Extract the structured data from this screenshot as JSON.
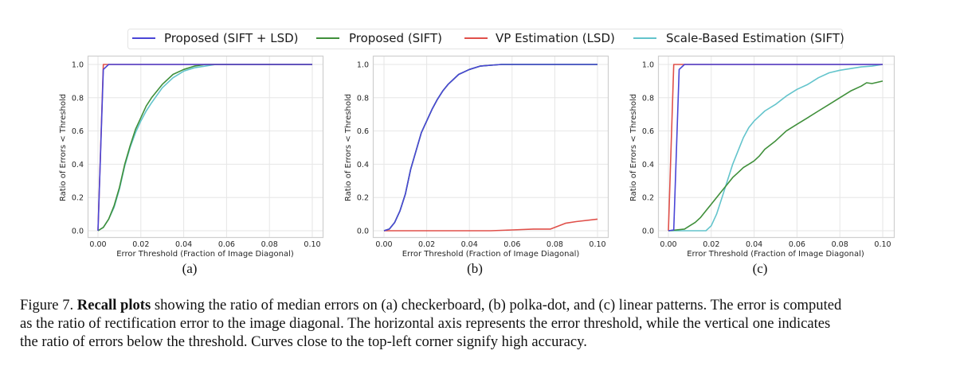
{
  "figure": {
    "number_label": "Figure 7.",
    "bold_title": "Recall plots",
    "caption_lines": [
      " showing the ratio of median errors on (a) checkerboard, (b) polka-dot, and (c) linear patterns. The error is computed",
      "as the ratio of rectification error to the image diagonal.  The horizontal axis represents the error threshold, while the vertical one indicates",
      "the ratio of errors below the threshold. Curves close to the top-left corner signify high accuracy."
    ]
  },
  "legend": [
    {
      "label": "Proposed (SIFT + LSD)",
      "color": "#4a45d6"
    },
    {
      "label": "Proposed (SIFT)",
      "color": "#3f8f3a"
    },
    {
      "label": "VP Estimation (LSD)",
      "color": "#e0504a"
    },
    {
      "label": "Scale-Based Estimation (SIFT)",
      "color": "#63c4cc"
    }
  ],
  "chart_data": [
    {
      "panel_label": "(a)",
      "type": "line",
      "title": "",
      "xlabel": "Error Threshold (Fraction of Image Diagonal)",
      "ylabel": "Ratio of Errors < Threshold",
      "xlim": [
        0.0,
        0.1
      ],
      "ylim": [
        0.0,
        1.0
      ],
      "xticks": [
        "0.00",
        "0.02",
        "0.04",
        "0.06",
        "0.08",
        "0.10"
      ],
      "yticks": [
        "0.0",
        "0.2",
        "0.4",
        "0.6",
        "0.8",
        "1.0"
      ],
      "grid": true,
      "series": [
        {
          "name": "Scale-Based Estimation (SIFT)",
          "x": [
            0.0,
            0.0025,
            0.005,
            0.0075,
            0.01,
            0.0125,
            0.015,
            0.0175,
            0.02,
            0.0225,
            0.025,
            0.03,
            0.035,
            0.04,
            0.045,
            0.05,
            0.055,
            0.06,
            0.1
          ],
          "y": [
            0.0,
            0.02,
            0.07,
            0.14,
            0.25,
            0.39,
            0.5,
            0.59,
            0.66,
            0.72,
            0.77,
            0.86,
            0.92,
            0.96,
            0.98,
            0.99,
            1.0,
            1.0,
            1.0
          ]
        },
        {
          "name": "Proposed (SIFT)",
          "x": [
            0.0,
            0.0025,
            0.005,
            0.0075,
            0.01,
            0.0125,
            0.015,
            0.0175,
            0.02,
            0.0225,
            0.025,
            0.03,
            0.035,
            0.04,
            0.045,
            0.05,
            0.055,
            0.06,
            0.1
          ],
          "y": [
            0.0,
            0.02,
            0.07,
            0.15,
            0.26,
            0.4,
            0.51,
            0.61,
            0.68,
            0.75,
            0.8,
            0.88,
            0.94,
            0.97,
            0.99,
            1.0,
            1.0,
            1.0,
            1.0
          ]
        },
        {
          "name": "VP Estimation (LSD)",
          "x": [
            0.0,
            0.0025,
            0.005,
            0.1
          ],
          "y": [
            0.0,
            1.0,
            1.0,
            1.0
          ]
        },
        {
          "name": "Proposed (SIFT + LSD)",
          "x": [
            0.0,
            0.0025,
            0.005,
            0.1
          ],
          "y": [
            0.0,
            0.97,
            1.0,
            1.0
          ]
        }
      ]
    },
    {
      "panel_label": "(b)",
      "type": "line",
      "title": "",
      "xlabel": "Error Threshold (Fraction of Image Diagonal)",
      "ylabel": "Ratio of Errors < Threshold",
      "xlim": [
        0.0,
        0.1
      ],
      "ylim": [
        0.0,
        1.0
      ],
      "xticks": [
        "0.00",
        "0.02",
        "0.04",
        "0.06",
        "0.08",
        "0.10"
      ],
      "yticks": [
        "0.0",
        "0.2",
        "0.4",
        "0.6",
        "0.8",
        "1.0"
      ],
      "grid": true,
      "series": [
        {
          "name": "Scale-Based Estimation (SIFT)",
          "x": [
            0.0,
            0.0025,
            0.005,
            0.0075,
            0.01,
            0.0125,
            0.015,
            0.0175,
            0.02,
            0.0225,
            0.025,
            0.0275,
            0.03,
            0.035,
            0.04,
            0.045,
            0.05,
            0.055,
            0.06,
            0.1
          ],
          "y": [
            0.0,
            0.01,
            0.05,
            0.12,
            0.22,
            0.37,
            0.48,
            0.59,
            0.66,
            0.73,
            0.79,
            0.84,
            0.88,
            0.94,
            0.97,
            0.99,
            0.995,
            1.0,
            1.0,
            1.0
          ]
        },
        {
          "name": "Proposed (SIFT)",
          "x": [
            0.0,
            0.0025,
            0.005,
            0.0075,
            0.01,
            0.0125,
            0.015,
            0.0175,
            0.02,
            0.0225,
            0.025,
            0.0275,
            0.03,
            0.035,
            0.04,
            0.045,
            0.05,
            0.055,
            0.06,
            0.1
          ],
          "y": [
            0.0,
            0.01,
            0.05,
            0.12,
            0.22,
            0.37,
            0.48,
            0.59,
            0.66,
            0.73,
            0.79,
            0.84,
            0.88,
            0.94,
            0.97,
            0.99,
            0.995,
            1.0,
            1.0,
            1.0
          ]
        },
        {
          "name": "VP Estimation (LSD)",
          "x": [
            0.0,
            0.05,
            0.06,
            0.07,
            0.078,
            0.085,
            0.09,
            0.1
          ],
          "y": [
            0.0,
            0.0,
            0.005,
            0.01,
            0.01,
            0.045,
            0.055,
            0.07
          ]
        },
        {
          "name": "Proposed (SIFT + LSD)",
          "x": [
            0.0,
            0.0025,
            0.005,
            0.0075,
            0.01,
            0.0125,
            0.015,
            0.0175,
            0.02,
            0.0225,
            0.025,
            0.0275,
            0.03,
            0.035,
            0.04,
            0.045,
            0.05,
            0.055,
            0.06,
            0.1
          ],
          "y": [
            0.0,
            0.01,
            0.05,
            0.12,
            0.22,
            0.37,
            0.48,
            0.59,
            0.66,
            0.73,
            0.79,
            0.84,
            0.88,
            0.94,
            0.97,
            0.99,
            0.995,
            1.0,
            1.0,
            1.0
          ]
        }
      ]
    },
    {
      "panel_label": "(c)",
      "type": "line",
      "title": "",
      "xlabel": "Error Threshold (Fraction of Image Diagonal)",
      "ylabel": "Ratio of Errors < Threshold",
      "xlim": [
        0.0,
        0.1
      ],
      "ylim": [
        0.0,
        1.0
      ],
      "xticks": [
        "0.00",
        "0.02",
        "0.04",
        "0.06",
        "0.08",
        "0.10"
      ],
      "yticks": [
        "0.0",
        "0.2",
        "0.4",
        "0.6",
        "0.8",
        "1.0"
      ],
      "grid": true,
      "series": [
        {
          "name": "Scale-Based Estimation (SIFT)",
          "x": [
            0.0,
            0.0175,
            0.02,
            0.0225,
            0.025,
            0.0275,
            0.03,
            0.0325,
            0.035,
            0.0375,
            0.04,
            0.0425,
            0.045,
            0.05,
            0.055,
            0.06,
            0.065,
            0.07,
            0.075,
            0.08,
            0.085,
            0.09,
            0.095,
            0.1
          ],
          "y": [
            0.0,
            0.0,
            0.03,
            0.1,
            0.2,
            0.3,
            0.4,
            0.48,
            0.56,
            0.62,
            0.66,
            0.69,
            0.72,
            0.76,
            0.81,
            0.85,
            0.88,
            0.92,
            0.95,
            0.965,
            0.975,
            0.985,
            0.99,
            1.0
          ]
        },
        {
          "name": "Proposed (SIFT)",
          "x": [
            0.0,
            0.0075,
            0.01,
            0.0125,
            0.015,
            0.0175,
            0.02,
            0.0225,
            0.025,
            0.0275,
            0.03,
            0.0325,
            0.035,
            0.0375,
            0.04,
            0.0425,
            0.045,
            0.05,
            0.055,
            0.06,
            0.065,
            0.07,
            0.075,
            0.08,
            0.085,
            0.09,
            0.0925,
            0.095,
            0.1
          ],
          "y": [
            0.0,
            0.01,
            0.03,
            0.05,
            0.08,
            0.12,
            0.16,
            0.2,
            0.24,
            0.28,
            0.32,
            0.35,
            0.38,
            0.4,
            0.42,
            0.45,
            0.49,
            0.54,
            0.6,
            0.64,
            0.68,
            0.72,
            0.76,
            0.8,
            0.84,
            0.87,
            0.89,
            0.885,
            0.9
          ]
        },
        {
          "name": "VP Estimation (LSD)",
          "x": [
            0.0,
            0.0025,
            0.0075,
            0.1
          ],
          "y": [
            0.0,
            1.0,
            1.0,
            1.0
          ]
        },
        {
          "name": "Proposed (SIFT + LSD)",
          "x": [
            0.0,
            0.0025,
            0.005,
            0.0075,
            0.1
          ],
          "y": [
            0.0,
            0.005,
            0.97,
            1.0,
            1.0
          ]
        }
      ]
    }
  ]
}
